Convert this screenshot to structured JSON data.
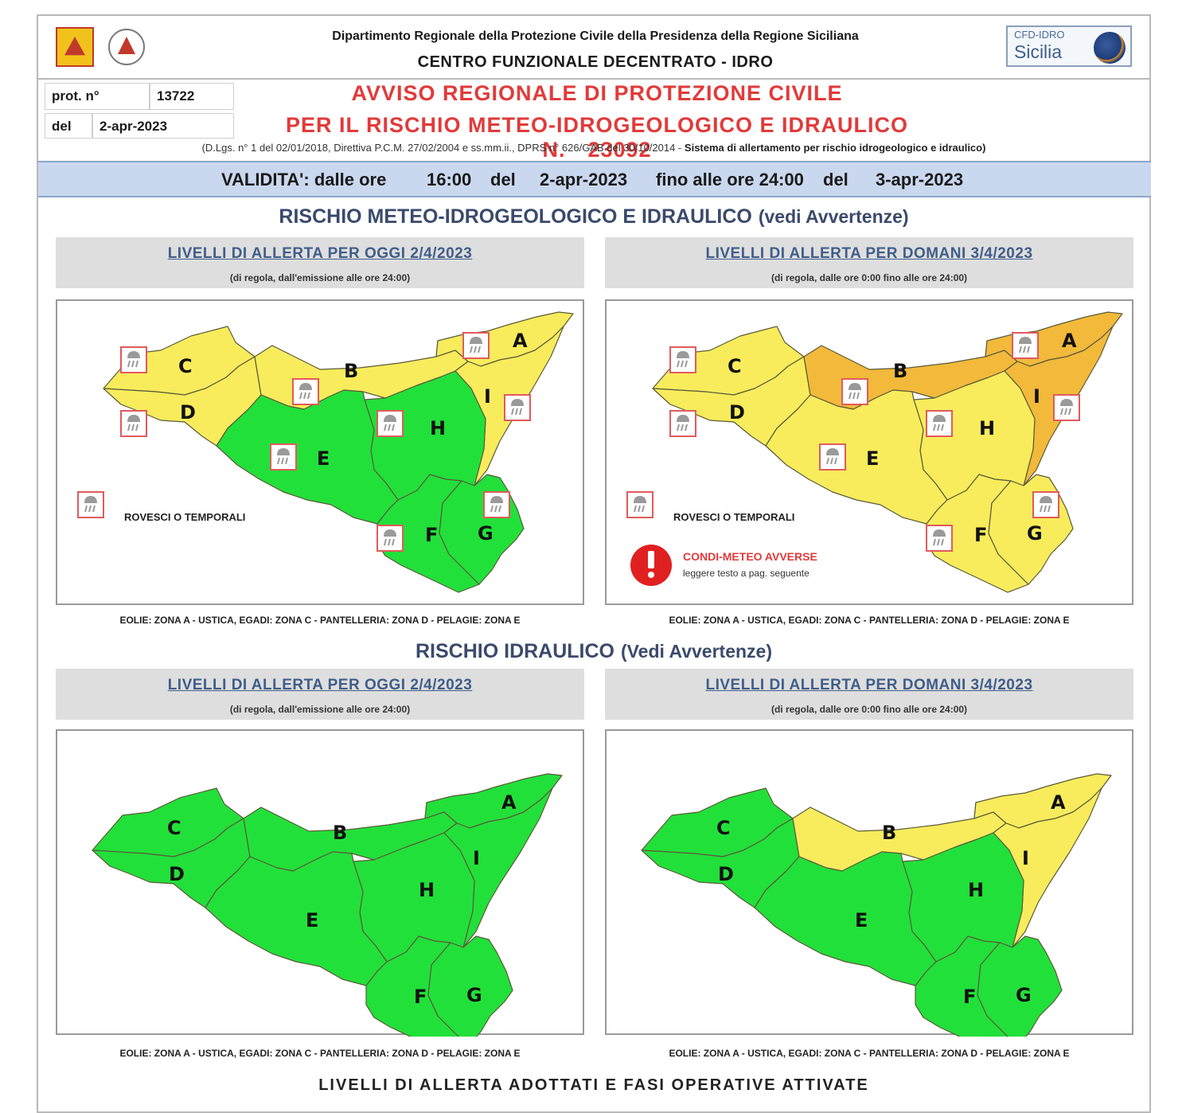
{
  "header": {
    "department": "Dipartimento Regionale della Protezione Civile della Presidenza della Regione Siciliana",
    "centre": "CENTRO FUNZIONALE DECENTRATO - IDRO",
    "cfd_logo_line1": "CFD-IDRO",
    "cfd_logo_line2": "Sicilia"
  },
  "protocol": {
    "prot_label": "prot. n°",
    "prot_value": "13722",
    "del_label": "del",
    "del_value": "2-apr-2023"
  },
  "title": {
    "line1": "AVVISO REGIONALE DI PROTEZIONE CIVILE",
    "line2": "PER IL RISCHIO METEO-IDROGEOLOGICO E IDRAULICO N.",
    "number": "23092",
    "norms": "(D.Lgs. n° 1 del 02/01/2018, Direttiva P.C.M. 27/02/2004 e ss.mm.ii., DPRS n° 626/GAB del 30/10/2014 -",
    "norms_bold": "Sistema di allertamento per rischio idrogeologico e idraulico)"
  },
  "validity": {
    "label": "VALIDITA': dalle ore",
    "from_time": "16:00",
    "del1": "del",
    "from_date": "2-apr-2023",
    "until": "fino alle ore 24:00",
    "del2": "del",
    "to_date": "3-apr-2023"
  },
  "section1": {
    "title": "RISCHIO METEO-IDROGEOLOGICO E IDRAULICO",
    "note": "(vedi Avvertenze)"
  },
  "section2": {
    "title": "RISCHIO IDRAULICO",
    "note": "(Vedi Avvertenze)"
  },
  "today_box": {
    "title": "LIVELLI DI ALLERTA PER OGGI 2/4/2023",
    "subtitle": "(di regola, dall'emissione alle ore 24:00)"
  },
  "tomorrow_box": {
    "title": "LIVELLI DI ALLERTA PER DOMANI 3/4/2023",
    "subtitle": "(di regola, dalle ore 0:00 fino alle ore 24:00)"
  },
  "legend": {
    "storms": "ROVESCI O TEMPORALI",
    "adverse": "CONDI-METEO AVVERSE",
    "adverse_note": "leggere testo a pag. seguente"
  },
  "islands_note": "EOLIE: ZONA A - USTICA, EGADI: ZONA C - PANTELLERIA: ZONA D - PELAGIE: ZONA E",
  "footer_cut": "LIVELLI DI ALLERTA ADOTTATI E FASI OPERATIVE ATTIVATE",
  "colors": {
    "green": "#22e03a",
    "yellow": "#f8ec5c",
    "orange": "#f2b93a",
    "title_red": "#e23a3a"
  },
  "zone_labels": [
    "A",
    "B",
    "C",
    "D",
    "E",
    "F",
    "G",
    "H",
    "I"
  ],
  "maps": {
    "idrogeo_today": {
      "A": "yellow",
      "B": "yellow",
      "C": "yellow",
      "D": "yellow",
      "E": "green",
      "F": "green",
      "G": "green",
      "H": "green",
      "I": "yellow"
    },
    "idrogeo_tomorrow": {
      "A": "orange",
      "B": "orange",
      "C": "yellow",
      "D": "yellow",
      "E": "yellow",
      "F": "yellow",
      "G": "yellow",
      "H": "yellow",
      "I": "orange"
    },
    "idraulico_today": {
      "A": "green",
      "B": "green",
      "C": "green",
      "D": "green",
      "E": "green",
      "F": "green",
      "G": "green",
      "H": "green",
      "I": "green"
    },
    "idraulico_tomorrow": {
      "A": "yellow",
      "B": "yellow",
      "C": "green",
      "D": "green",
      "E": "green",
      "F": "green",
      "G": "green",
      "H": "green",
      "I": "yellow"
    }
  }
}
